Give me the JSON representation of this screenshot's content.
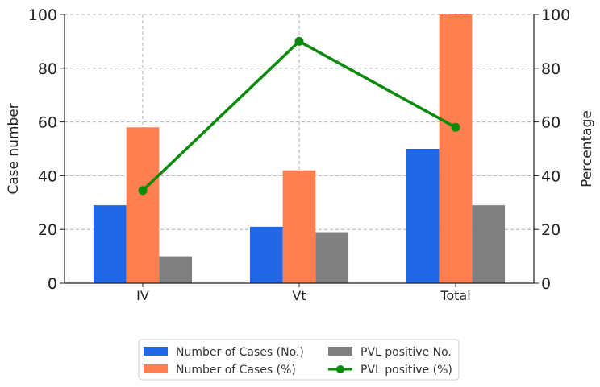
{
  "chart_data": {
    "type": "bar",
    "categories": [
      "IV",
      "Vt",
      "Total"
    ],
    "ylabel": "Case number",
    "y2label": "Percentage",
    "ylim": [
      0,
      100
    ],
    "y2lim": [
      0,
      100
    ],
    "yticks": [
      "0",
      "20",
      "40",
      "60",
      "80",
      "100"
    ],
    "y2ticks": [
      "0",
      "20",
      "40",
      "60",
      "80",
      "100"
    ],
    "grid": true,
    "legend_position": "bottom-center",
    "series": [
      {
        "name": "Number of Cases (No.)",
        "kind": "bar",
        "color": "#1f67e6",
        "values": [
          29,
          21,
          50
        ]
      },
      {
        "name": "Number of Cases (%)",
        "kind": "bar",
        "color": "#ff7f50",
        "values": [
          58,
          42,
          100
        ]
      },
      {
        "name": "PVL positive No.",
        "kind": "bar",
        "color": "#808080",
        "values": [
          10,
          19,
          29
        ]
      },
      {
        "name": "PVL positive (%)",
        "kind": "line",
        "axis": "right",
        "color": "#0a8a0a",
        "values": [
          34.5,
          90,
          58
        ]
      }
    ]
  }
}
